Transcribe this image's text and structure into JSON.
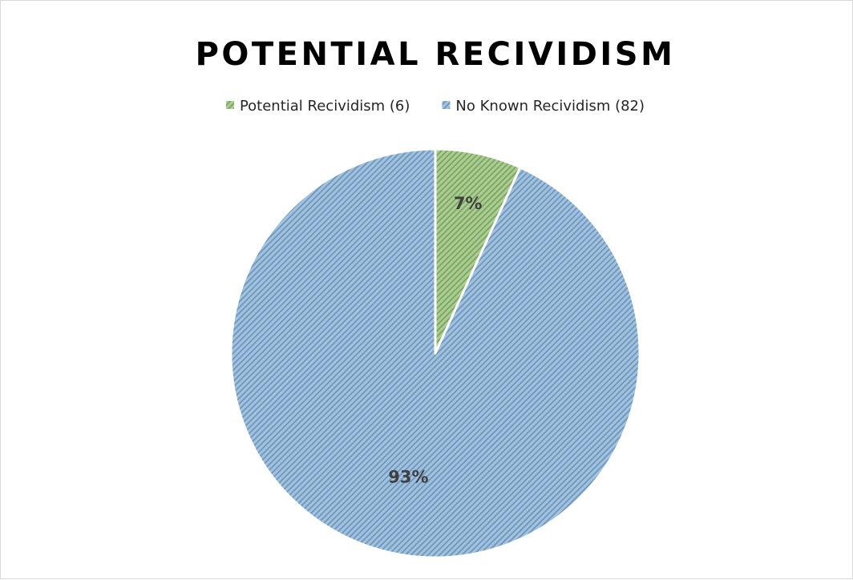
{
  "chart_data": {
    "type": "pie",
    "title": "POTENTIAL RECIVIDISM",
    "legend_position": "top",
    "slices": [
      {
        "name": "Potential Recividism (6)",
        "value": 6,
        "label": "7%",
        "color": "#a9d18e"
      },
      {
        "name": "No Known Recividism (82)",
        "value": 82,
        "label": "93%",
        "color": "#9dc3e6"
      }
    ],
    "fill_pattern": "diagonal-hatch"
  }
}
